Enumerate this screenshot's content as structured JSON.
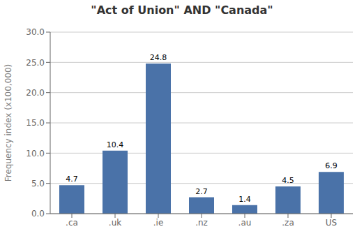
{
  "chart_data": {
    "type": "bar",
    "title": "\"Act of Union\" AND \"Canada\"",
    "categories": [
      ".ca",
      ".uk",
      ".ie",
      ".nz",
      ".au",
      ".za",
      "US"
    ],
    "values": [
      4.7,
      10.4,
      24.8,
      2.7,
      1.4,
      4.5,
      6.9
    ],
    "color": "#4a72a8",
    "ylabel": "Frequency index (x100,000)",
    "ylim": [
      0,
      30
    ],
    "yticks": [
      {
        "value": 0.0,
        "label": "0.0"
      },
      {
        "value": 5.0,
        "label": "5.0"
      },
      {
        "value": 10.0,
        "label": "10.0"
      },
      {
        "value": 15.0,
        "label": "15.0"
      },
      {
        "value": 20.0,
        "label": "20.0"
      },
      {
        "value": 25.0,
        "label": "25.0"
      },
      {
        "value": 30.0,
        "label": "30.0"
      }
    ],
    "grid": true,
    "data_labels": true
  }
}
